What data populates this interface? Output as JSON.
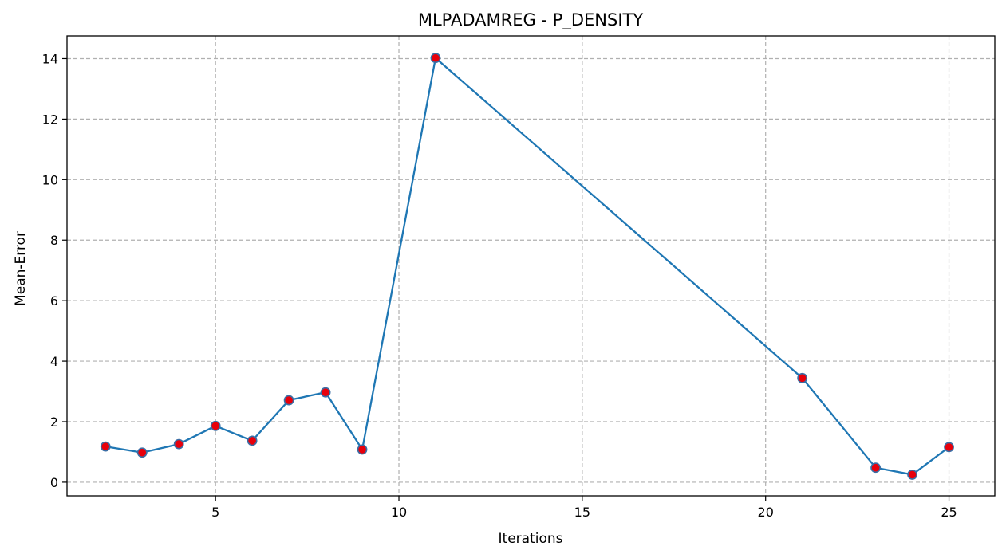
{
  "chart_data": {
    "type": "line",
    "title": "MLPADAMREG - P_DENSITY",
    "xlabel": "Iterations",
    "ylabel": "Mean-Error",
    "xlim": [
      0.95,
      26.25
    ],
    "ylim": [
      -0.45,
      14.75
    ],
    "xticks": [
      5,
      10,
      15,
      20,
      25
    ],
    "yticks": [
      0,
      2,
      4,
      6,
      8,
      10,
      12,
      14
    ],
    "grid": true,
    "series": [
      {
        "x": [
          2,
          3,
          4,
          5,
          6,
          7,
          8,
          9,
          11,
          21,
          23,
          24,
          25
        ],
        "y": [
          1.18,
          0.98,
          1.26,
          1.86,
          1.37,
          2.71,
          2.97,
          1.08,
          14.02,
          3.44,
          0.48,
          0.25,
          1.16
        ]
      }
    ],
    "colors": {
      "line": "#1f77b4",
      "marker_fill": "#e8000b",
      "marker_edge": "#3b6ea5",
      "grid": "#b0b0b0"
    }
  }
}
